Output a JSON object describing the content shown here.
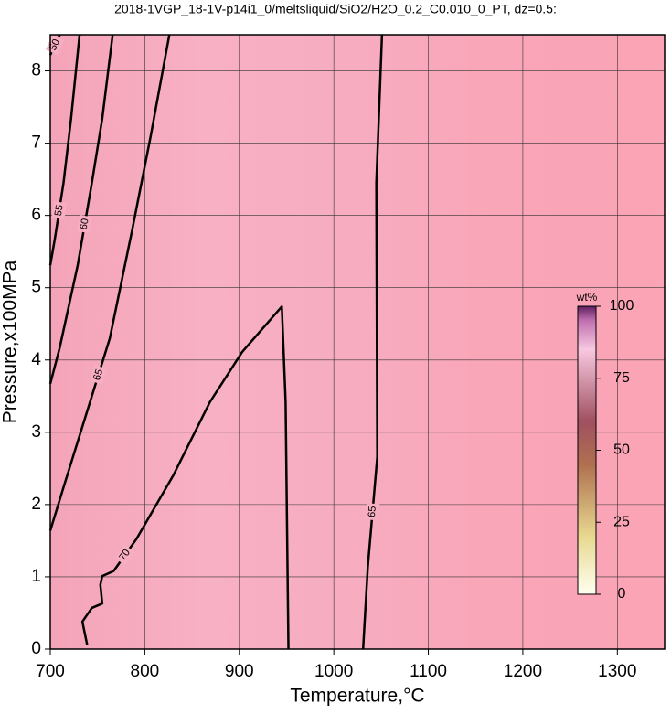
{
  "chart_data": {
    "type": "contour",
    "title": "2018-1VGP_18-1V-p14i1_0/meltsliquid/SiO2/H2O_0.2_C0.010_0_PT, dz=0.5:",
    "x_label": "Temperature,°C",
    "y_label": "Pressure,x100MPa",
    "xlim": [
      700,
      1350
    ],
    "ylim": [
      0,
      8.5
    ],
    "xticks": [
      700,
      800,
      900,
      1000,
      1100,
      1200,
      1300
    ],
    "yticks": [
      0,
      1,
      2,
      3,
      4,
      5,
      6,
      7,
      8
    ],
    "grid": true,
    "contour_color": "#000000",
    "contours": [
      {
        "level": 50,
        "x": [
          700,
          710
        ],
        "y": [
          8.22,
          8.5
        ]
      },
      {
        "level": 55,
        "x": [
          731,
          722,
          714,
          705,
          700
        ],
        "y": [
          8.5,
          7.34,
          6.45,
          5.69,
          5.31
        ]
      },
      {
        "level": 60,
        "x": [
          766,
          755,
          744,
          729,
          710,
          700
        ],
        "y": [
          8.5,
          7.34,
          6.45,
          5.31,
          4.17,
          3.67
        ]
      },
      {
        "level": 65,
        "x": [
          826,
          806,
          787,
          763,
          739,
          715,
          700
        ],
        "y": [
          8.5,
          7.08,
          5.82,
          4.3,
          3.29,
          2.28,
          1.64
        ]
      },
      {
        "level": 70,
        "x": [
          739,
          734,
          744,
          755,
          753,
          755,
          767,
          791,
          830,
          869,
          903,
          945,
          949,
          952
        ],
        "y": [
          0.06,
          0.38,
          0.57,
          0.63,
          0.89,
          1.01,
          1.08,
          1.52,
          2.4,
          3.42,
          4.11,
          4.74,
          3.42,
          0
        ]
      },
      {
        "level": 65,
        "x": [
          1051,
          1045,
          1046,
          1036,
          1031
        ],
        "y": [
          8.5,
          6.45,
          2.66,
          1.14,
          0
        ]
      }
    ],
    "colorbar": {
      "label": "wt%",
      "lim": [
        0,
        100
      ],
      "ticks": [
        0,
        25,
        50,
        75,
        100
      ]
    }
  }
}
